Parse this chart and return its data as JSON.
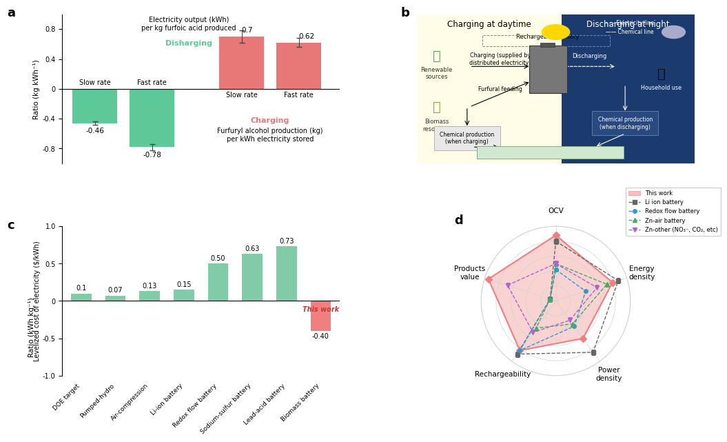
{
  "panel_a": {
    "discharging_bars": {
      "labels": [
        "Slow rate",
        "Fast rate"
      ],
      "values": [
        0.7,
        0.62
      ],
      "errors": [
        0.08,
        0.06
      ],
      "color": "#E87878"
    },
    "charging_bars": {
      "labels": [
        "Slow rate",
        "Fast rate"
      ],
      "values": [
        -0.46,
        -0.78
      ],
      "errors": [
        0.02,
        0.04
      ],
      "color": "#5DC898"
    },
    "ylabel_top": "Ratio (kg kWh⁻¹)",
    "ylabel_bottom": "Ratio (kWh kg⁻¹)",
    "text_elec_output": "Electricity output (kWh)\nper kg furfoic acid produced",
    "text_discharging": "Disharging",
    "text_charging": "Charging",
    "text_furfuryl": "Furfuryl alcohol production (kg)\nper kWh electricity stored",
    "discharging_color": "#5DC898",
    "charging_color": "#E87878",
    "yticks": [
      -0.8,
      -0.4,
      0.0,
      0.4,
      0.8
    ],
    "yticklabels": [
      "-0.8",
      "-0.4",
      "0",
      "0.4",
      "0.8"
    ]
  },
  "panel_c": {
    "categories": [
      "DOE target",
      "Pumped-hydro",
      "Air-compression",
      "Li-ion battery",
      "Redox flow battery",
      "Sodium-sulfur battery",
      "Lead-acid battery",
      "Biomass battery"
    ],
    "values": [
      0.1,
      0.07,
      0.13,
      0.15,
      0.5,
      0.63,
      0.73,
      -0.4
    ],
    "val_labels": [
      "0.1",
      "0.07",
      "0.13",
      "0.15",
      "0.50",
      "0.63",
      "0.73",
      "-0.40"
    ],
    "colors": [
      "#82CBA8",
      "#82CBA8",
      "#82CBA8",
      "#82CBA8",
      "#82CBA8",
      "#82CBA8",
      "#82CBA8",
      "#F08080"
    ],
    "ylabel": "Levelized cost of electricity ($/kWh)",
    "this_work_label": "This work"
  },
  "panel_d": {
    "axes": [
      "OCV",
      "Energy\ndensity",
      "Power\ndensity",
      "Rechargeability",
      "Products\nvalue"
    ],
    "series": [
      {
        "label": "This work",
        "values": [
          0.88,
          0.8,
          0.62,
          0.82,
          0.95
        ],
        "color": "#F08080",
        "fill": true,
        "fill_alpha": 0.35,
        "linewidth": 1.5,
        "marker": "D",
        "markersize": 5,
        "linestyle": "-"
      },
      {
        "label": "Li ion battery",
        "values": [
          0.8,
          0.88,
          0.85,
          0.88,
          0.08
        ],
        "color": "#666666",
        "fill": false,
        "linewidth": 1.0,
        "marker": "s",
        "markersize": 4,
        "linestyle": "--"
      },
      {
        "label": "Redox flow battery",
        "values": [
          0.42,
          0.42,
          0.42,
          0.82,
          0.08
        ],
        "color": "#3399CC",
        "fill": false,
        "linewidth": 1.0,
        "marker": "o",
        "markersize": 4,
        "linestyle": "--"
      },
      {
        "label": "Zn-air battery",
        "values": [
          0.5,
          0.72,
          0.38,
          0.45,
          0.08
        ],
        "color": "#44AA66",
        "fill": false,
        "linewidth": 1.0,
        "marker": "^",
        "markersize": 4,
        "linestyle": "--"
      },
      {
        "label": "Zn-other (NO₃⁻, CO₂, etc)",
        "values": [
          0.5,
          0.58,
          0.32,
          0.52,
          0.68
        ],
        "color": "#AA66CC",
        "fill": false,
        "linewidth": 1.0,
        "marker": "v",
        "markersize": 4,
        "linestyle": "--"
      }
    ]
  }
}
